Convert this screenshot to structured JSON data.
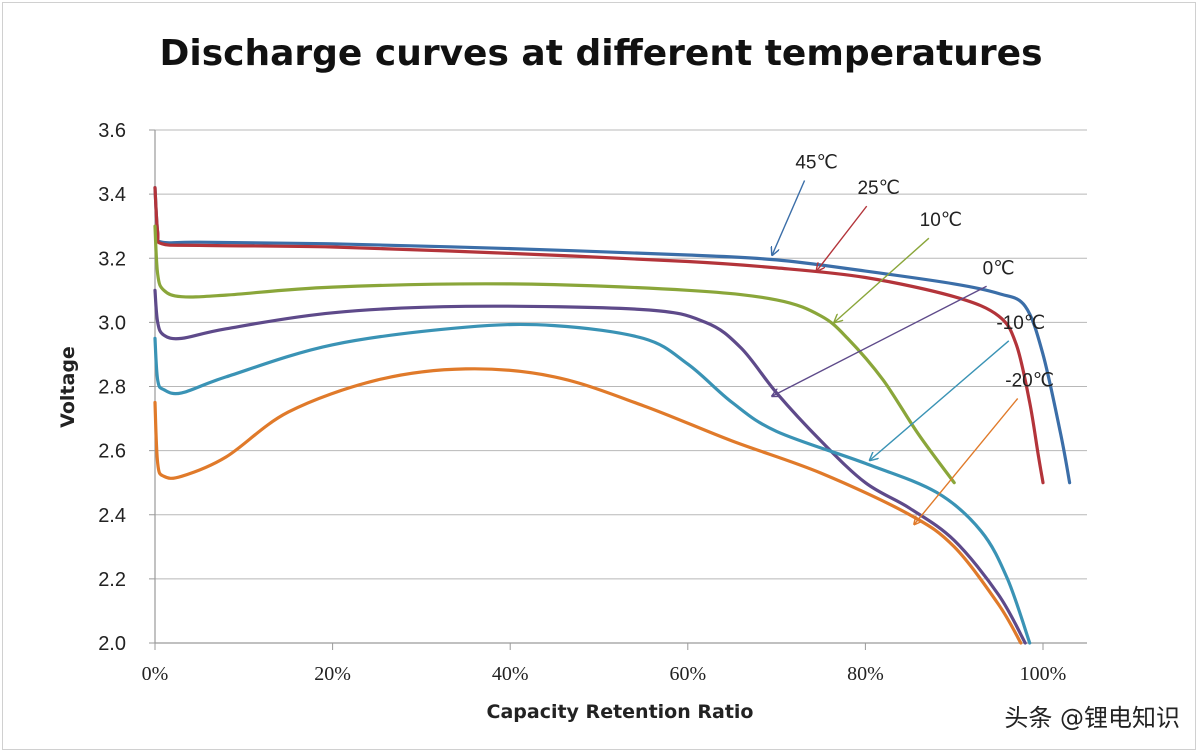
{
  "chart_data": {
    "type": "line",
    "title": "Discharge curves at different temperatures",
    "xlabel": "Capacity Retention Ratio",
    "ylabel": "Voltage",
    "xlim": [
      0,
      100
    ],
    "ylim": [
      2.0,
      3.6
    ],
    "x_ticks": [
      0,
      20,
      40,
      60,
      80,
      100
    ],
    "x_tick_labels": [
      "0%",
      "20%",
      "40%",
      "60%",
      "80%",
      "100%"
    ],
    "y_ticks": [
      2.0,
      2.2,
      2.4,
      2.6,
      2.8,
      3.0,
      3.2,
      3.4,
      3.6
    ],
    "y_tick_labels": [
      "2.0",
      "2.2",
      "2.4",
      "2.6",
      "2.8",
      "3.0",
      "3.2",
      "3.4",
      "3.6"
    ],
    "grid": "horizontal",
    "series": [
      {
        "name": "45℃",
        "color": "#3b6ea8",
        "arrow_color": "#3b6ea8",
        "x": [
          0,
          0.3,
          0.8,
          5,
          20,
          40,
          60,
          70,
          80,
          90,
          95,
          98,
          100,
          102,
          103
        ],
        "y": [
          3.42,
          3.28,
          3.25,
          3.25,
          3.245,
          3.23,
          3.21,
          3.195,
          3.16,
          3.12,
          3.09,
          3.05,
          2.9,
          2.65,
          2.5
        ],
        "arrow_tip": [
          69.5,
          3.21
        ],
        "label_pos": [
          74.5,
          3.48
        ]
      },
      {
        "name": "25℃",
        "color": "#b3343a",
        "arrow_color": "#b3343a",
        "x": [
          0,
          0.3,
          0.8,
          5,
          20,
          40,
          60,
          70,
          80,
          90,
          95,
          97,
          98.5,
          99.5,
          100
        ],
        "y": [
          3.42,
          3.28,
          3.245,
          3.24,
          3.235,
          3.215,
          3.19,
          3.17,
          3.14,
          3.08,
          3.02,
          2.93,
          2.75,
          2.58,
          2.5
        ],
        "arrow_tip": [
          74.5,
          3.16
        ],
        "label_pos": [
          81.5,
          3.4
        ]
      },
      {
        "name": "10℃",
        "color": "#8aa63a",
        "arrow_color": "#8aa63a",
        "x": [
          0,
          0.3,
          1,
          3,
          8,
          20,
          40,
          60,
          70,
          75,
          78,
          82,
          86,
          90
        ],
        "y": [
          3.3,
          3.15,
          3.1,
          3.08,
          3.085,
          3.11,
          3.12,
          3.1,
          3.07,
          3.02,
          2.95,
          2.82,
          2.65,
          2.5
        ],
        "arrow_tip": [
          76.5,
          3.0
        ],
        "label_pos": [
          88.5,
          3.3
        ]
      },
      {
        "name": "0℃",
        "color": "#5e4a8a",
        "arrow_color": "#5e4a8a",
        "x": [
          0,
          0.3,
          1,
          3,
          8,
          20,
          35,
          55,
          62,
          66,
          70,
          75,
          80,
          85,
          90,
          95,
          98
        ],
        "y": [
          3.1,
          3.0,
          2.96,
          2.95,
          2.98,
          3.03,
          3.05,
          3.04,
          3.0,
          2.92,
          2.78,
          2.63,
          2.5,
          2.42,
          2.32,
          2.15,
          2.0
        ],
        "arrow_tip": [
          69.5,
          2.77
        ],
        "label_pos": [
          95.0,
          3.15
        ]
      },
      {
        "name": "-10℃",
        "color": "#3a93b5",
        "arrow_color": "#3a93b5",
        "x": [
          0,
          0.3,
          1,
          3,
          8,
          20,
          35,
          45,
          55,
          60,
          65,
          70,
          80,
          88,
          93,
          96,
          98.5
        ],
        "y": [
          2.95,
          2.82,
          2.79,
          2.78,
          2.83,
          2.93,
          2.985,
          2.99,
          2.95,
          2.87,
          2.75,
          2.66,
          2.56,
          2.47,
          2.35,
          2.2,
          2.0
        ],
        "arrow_tip": [
          80.5,
          2.57
        ],
        "label_pos": [
          97.5,
          2.98
        ]
      },
      {
        "name": "-20℃",
        "color": "#e07a2a",
        "arrow_color": "#e07a2a",
        "x": [
          0,
          0.3,
          1,
          3,
          8,
          15,
          25,
          35,
          45,
          55,
          65,
          75,
          85,
          90,
          95,
          97.5
        ],
        "y": [
          2.75,
          2.56,
          2.52,
          2.52,
          2.58,
          2.72,
          2.82,
          2.855,
          2.83,
          2.74,
          2.63,
          2.53,
          2.4,
          2.3,
          2.12,
          2.0
        ],
        "arrow_tip": [
          85.5,
          2.37
        ],
        "label_pos": [
          98.5,
          2.8
        ]
      }
    ]
  },
  "watermark": "头条 @锂电知识"
}
